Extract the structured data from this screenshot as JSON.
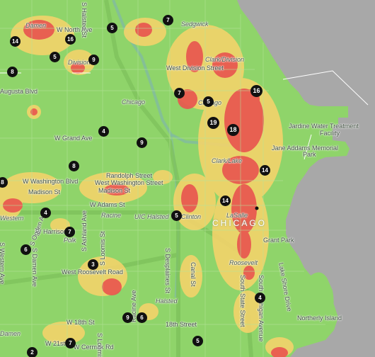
{
  "map": {
    "colors": {
      "water": "#a8a8a8",
      "low": "#8fd46a",
      "mid": "#f3d36b",
      "high": "#e8574f",
      "badge": "#111111"
    },
    "labels": {
      "damen_n": "Damen",
      "w_north_ave": "W North Ave",
      "sedgwick": "Sedgwick",
      "clark_division": "Clark/Division",
      "division": "Division",
      "w_division_st": "West Division Street",
      "augusta": "Augusta Blvd",
      "chicago_l": "Chicago",
      "chicago_l2": "Chicago",
      "w_grand": "W Grand Ave",
      "jardine": "Jardine Water Treatment",
      "facility": "Facility",
      "jane_addams": "Jane Addams Memorial",
      "park_lbl": "Park",
      "clark_lake": "Clark/Lake",
      "randolph": "Randolph Street",
      "w_washington_st": "West Washington Street",
      "w_washington_blvd": "W Washington Blvd",
      "madison_st": "Madison St",
      "madison_st2": "Madison St",
      "w_adams": "W Adams St",
      "racine": "Racine",
      "uic_halsted": "UIC Halsted",
      "clinton": "Clinton",
      "lasalle": "LaSalle",
      "chicago_big": "CHICAGO",
      "western": "Western",
      "w_harrison": "W Harrison St",
      "polk": "Polk",
      "grant_park": "Grant Park",
      "s_ashland": "S Ashland Ave",
      "s_loomis": "S Loomis St",
      "s_desplaines": "S Desplaines St",
      "s_ogden": "S Ogden Ave",
      "s_damen": "S Damen Ave",
      "s_western": "S Western Ave",
      "w_roosevelt": "West Roosevelt Road",
      "roosevelt": "Roosevelt",
      "canal_st": "Canal St",
      "s_state": "South State Street",
      "s_michigan": "South Michigan Avenue",
      "lake_shore": "Lake Shore Drive",
      "halsted": "Halsted",
      "w_18th": "W 18th St",
      "st18": "18th Street",
      "racine_ave": "Racine Ave",
      "damen_s": "Damen",
      "w_21st": "W 21st",
      "w_cermak": "W Cermak Rd",
      "s_loomis2": "S Loomis",
      "northerly": "Northerly Island",
      "s_halsted_st": "S Halsted St"
    },
    "markers": [
      "14",
      "16",
      "9",
      "8",
      "5",
      "7",
      "7",
      "16",
      "19",
      "18",
      "5",
      "9",
      "8",
      "8",
      "14",
      "4",
      "5",
      "14",
      "6",
      "7",
      "3",
      "4",
      "9",
      "6",
      "4",
      "5",
      "7",
      "2",
      "5"
    ]
  }
}
